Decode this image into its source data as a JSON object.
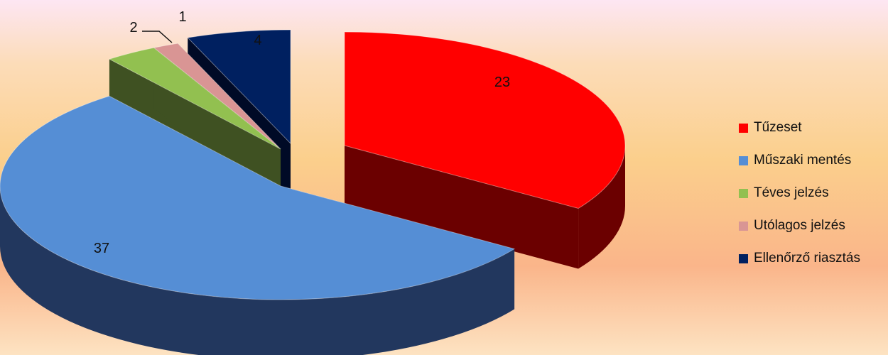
{
  "chart_data": {
    "type": "pie",
    "style": "3d-exploded",
    "legend_position": "right",
    "slices": [
      {
        "label": "Tűzeset",
        "value": 23,
        "value_label": "23",
        "color": "#ff0000",
        "side_color": "#6b0000"
      },
      {
        "label": "Műszaki mentés",
        "value": 37,
        "value_label": "37",
        "color": "#558ed5",
        "side_color": "#22375e"
      },
      {
        "label": "Téves jelzés",
        "value": 2,
        "value_label": "2",
        "color": "#92c050",
        "side_color": "#3f5122"
      },
      {
        "label": "Utólagos jelzés",
        "value": 1,
        "value_label": "1",
        "color": "#d99594",
        "side_color": "#6e4242"
      },
      {
        "label": "Ellenőrző riasztás",
        "value": 4,
        "value_label": "4",
        "color": "#002060",
        "side_color": "#000a26"
      }
    ]
  }
}
